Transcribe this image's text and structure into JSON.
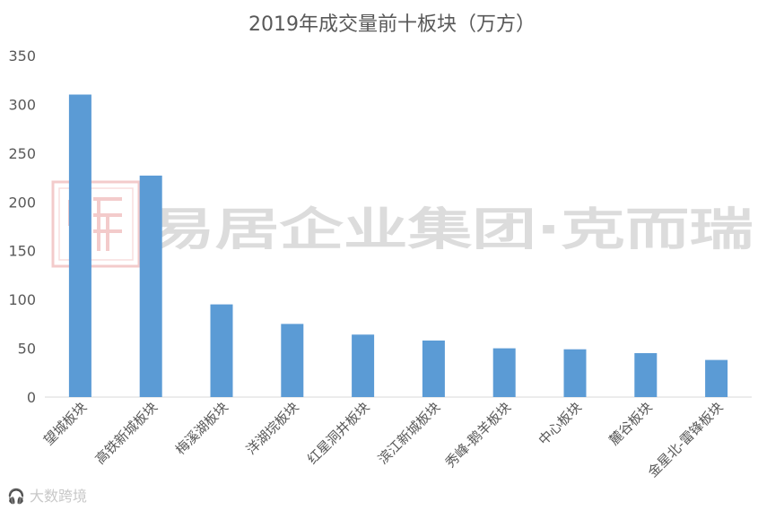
{
  "chart_data": {
    "type": "bar",
    "title": "2019年成交量前十板块（万方）",
    "categories": [
      "望城板块",
      "高铁新城板块",
      "梅溪湖板块",
      "洋湖垸板块",
      "红星洞井板块",
      "滨江新城板块",
      "秀峰-鹅羊板块",
      "中心板块",
      "麓谷板块",
      "金星北-雷锋板块"
    ],
    "values": [
      310,
      227,
      95,
      75,
      64,
      58,
      50,
      49,
      45,
      38
    ],
    "ylim": [
      0,
      350
    ],
    "yticks": [
      "0",
      "50",
      "100",
      "150",
      "200",
      "250",
      "300",
      "350"
    ],
    "xlabel": "",
    "ylabel": "",
    "bar_color": "#5b9bd5",
    "grid": false
  },
  "watermark": {
    "text": "易居企业集团·克而瑞",
    "color": "#d9d9d9",
    "logo_color": "#f2c6c6"
  },
  "footer": {
    "text": "大数跨境",
    "icon": "headphone-logo-icon"
  }
}
